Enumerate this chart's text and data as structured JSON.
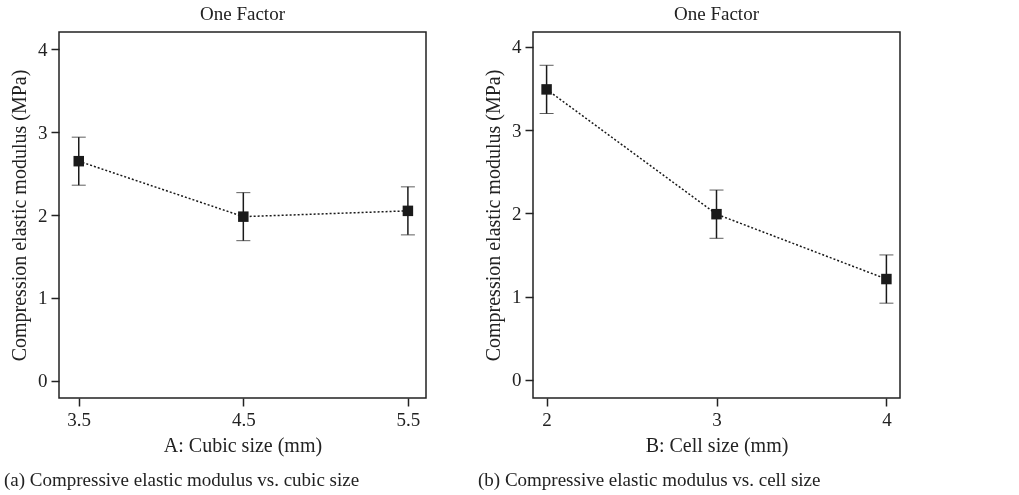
{
  "chart_data": [
    {
      "type": "line",
      "title": "One Factor",
      "xlabel": "A: Cubic size (mm)",
      "ylabel": "Compression elastic modulus (MPa)",
      "x": [
        3.5,
        4.5,
        5.5
      ],
      "series": [
        {
          "color": "#1a1a1a",
          "values": [
            2.65,
            1.98,
            2.05
          ],
          "errors": [
            0.29,
            0.29,
            0.29
          ]
        }
      ],
      "xlim": [
        3.38,
        5.61
      ],
      "xticks": [
        3.5,
        4.5,
        5.5
      ],
      "ylim": [
        -0.21,
        4.21
      ],
      "yticks": [
        0,
        1,
        2,
        3,
        4
      ],
      "marker": "square",
      "line_style": "dotted",
      "grid": false,
      "annotations": [
        "(a) Compressive elastic modulus vs. cubic size"
      ]
    },
    {
      "type": "line",
      "title": "One Factor",
      "xlabel": "B: Cell size (mm)",
      "ylabel": "Compression elastic modulus (MPa)",
      "x": [
        2,
        3,
        4
      ],
      "series": [
        {
          "color": "#1a1a1a",
          "values": [
            3.49,
            1.99,
            1.21
          ],
          "errors": [
            0.29,
            0.29,
            0.29
          ]
        }
      ],
      "xlim": [
        1.92,
        4.08
      ],
      "xticks": [
        2,
        3,
        4
      ],
      "ylim": [
        -0.22,
        4.18
      ],
      "yticks": [
        0,
        1,
        2,
        3,
        4
      ],
      "marker": "square",
      "line_style": "dotted",
      "grid": false,
      "annotations": [
        "(b) Compressive elastic modulus vs. cell size"
      ]
    }
  ]
}
